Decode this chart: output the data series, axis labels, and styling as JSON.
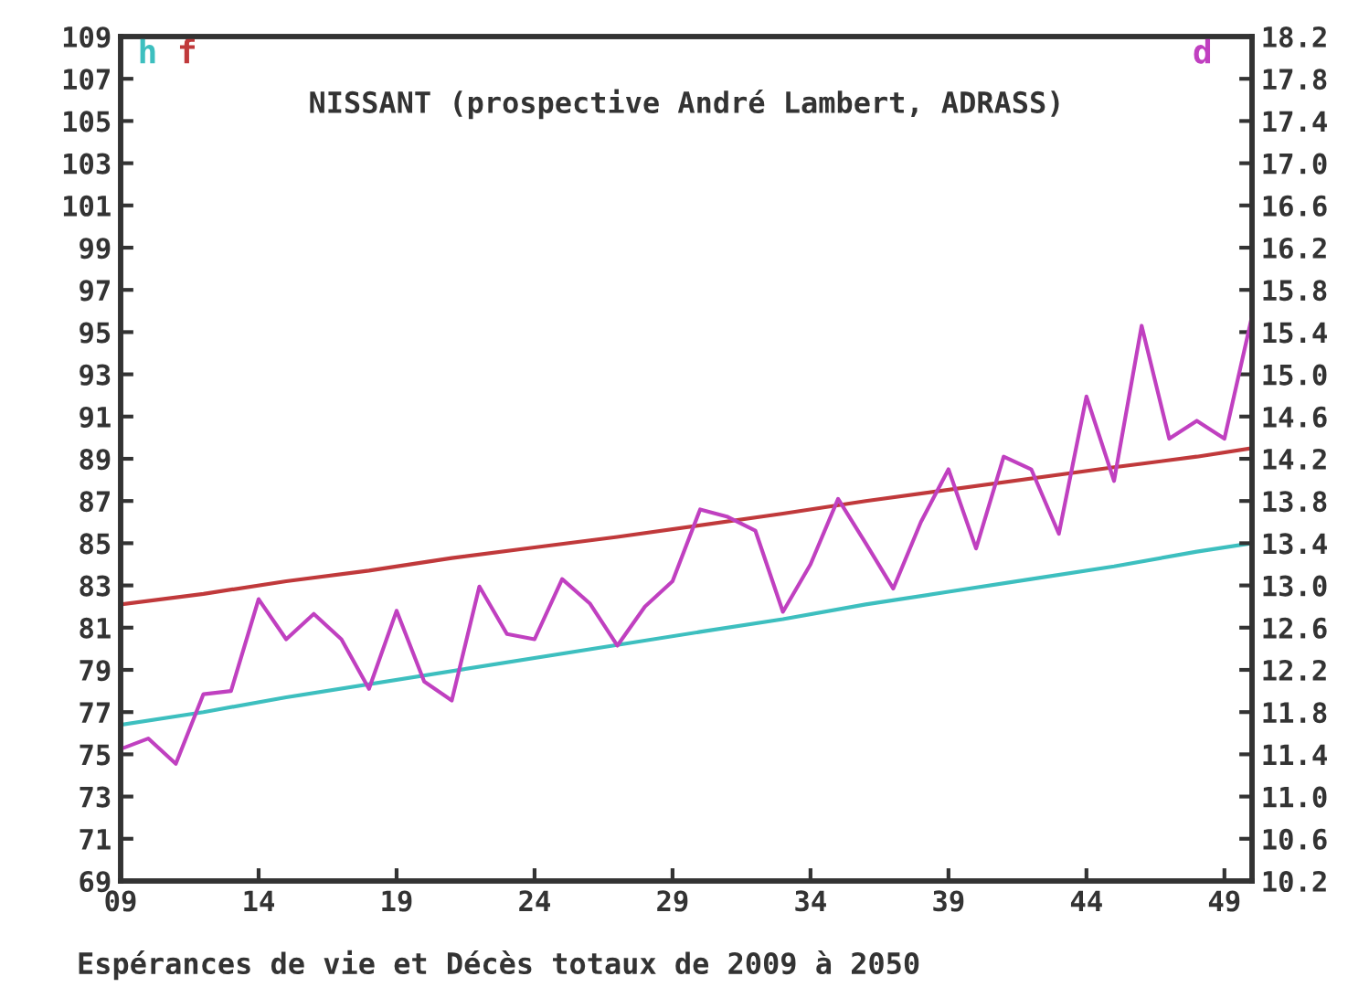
{
  "chart_data": {
    "type": "line",
    "title": "NISSANT (prospective André Lambert, ADRASS)",
    "xlabel": "Espérances de vie et Décès totaux de 2009 à 2050",
    "xlim": [
      9,
      50
    ],
    "xticks": [
      {
        "value": 9,
        "label": "09"
      },
      14,
      19,
      24,
      29,
      34,
      39,
      44,
      49
    ],
    "ylim": [
      69,
      109
    ],
    "yticks": [
      69,
      71,
      73,
      75,
      77,
      79,
      81,
      83,
      85,
      87,
      89,
      91,
      93,
      95,
      97,
      99,
      101,
      103,
      105,
      107,
      109
    ],
    "y2lim": [
      10.2,
      18.2
    ],
    "y2ticks": [
      {
        "value": 10.2,
        "label": "10.2"
      },
      {
        "value": 10.6,
        "label": "10.6"
      },
      {
        "value": 11.0,
        "label": "11.0"
      },
      {
        "value": 11.4,
        "label": "11.4"
      },
      {
        "value": 11.8,
        "label": "11.8"
      },
      {
        "value": 12.2,
        "label": "12.2"
      },
      {
        "value": 12.6,
        "label": "12.6"
      },
      {
        "value": 13.0,
        "label": "13.0"
      },
      {
        "value": 13.4,
        "label": "13.4"
      },
      {
        "value": 13.8,
        "label": "13.8"
      },
      {
        "value": 14.2,
        "label": "14.2"
      },
      {
        "value": 14.6,
        "label": "14.6"
      },
      {
        "value": 15.0,
        "label": "15.0"
      },
      {
        "value": 15.4,
        "label": "15.4"
      },
      {
        "value": 15.8,
        "label": "15.8"
      },
      {
        "value": 16.2,
        "label": "16.2"
      },
      {
        "value": 16.6,
        "label": "16.6"
      },
      {
        "value": 17.0,
        "label": "17.0"
      },
      {
        "value": 17.4,
        "label": "17.4"
      },
      {
        "value": 17.8,
        "label": "17.8"
      },
      {
        "value": 18.2,
        "label": "18.2"
      }
    ],
    "grid": false,
    "legend": "top left",
    "series": [
      {
        "name": "h",
        "color": "#3dbfbf",
        "x": [
          9,
          12,
          15,
          30,
          33,
          36,
          39,
          42,
          45,
          48,
          50
        ],
        "values": [
          76.4,
          77.0,
          77.7,
          80.8,
          81.4,
          82.1,
          82.7,
          83.3,
          83.9,
          84.6,
          85.0
        ]
      },
      {
        "name": "f",
        "color": "#c0393b",
        "x": [
          9,
          12,
          15,
          18,
          21,
          24,
          27,
          33,
          36,
          45,
          48,
          50
        ],
        "values": [
          82.1,
          82.6,
          83.2,
          83.7,
          84.3,
          84.8,
          85.3,
          86.4,
          87.0,
          88.6,
          89.1,
          89.5
        ]
      },
      {
        "name": "d",
        "color": "#c040c0",
        "axis": "y2",
        "x": [
          9,
          10,
          11,
          12,
          13,
          14,
          15,
          16,
          17,
          18,
          19,
          20,
          21,
          22,
          23,
          24,
          25,
          26,
          27,
          28,
          29,
          30,
          31,
          32,
          33,
          34,
          35,
          36,
          37,
          38,
          39,
          40,
          41,
          42,
          43,
          44,
          45,
          46,
          47,
          48,
          49,
          50
        ],
        "values": [
          11.45,
          11.55,
          11.31,
          11.97,
          12.0,
          12.87,
          12.49,
          12.73,
          12.49,
          12.02,
          12.76,
          12.09,
          11.91,
          12.99,
          12.54,
          12.49,
          13.06,
          12.83,
          12.43,
          12.8,
          13.04,
          13.72,
          13.65,
          13.52,
          12.75,
          13.2,
          13.82,
          13.4,
          12.97,
          13.6,
          14.1,
          13.35,
          14.22,
          14.1,
          13.49,
          14.79,
          13.99,
          15.46,
          14.39,
          14.56,
          14.39,
          15.55
        ]
      }
    ]
  }
}
